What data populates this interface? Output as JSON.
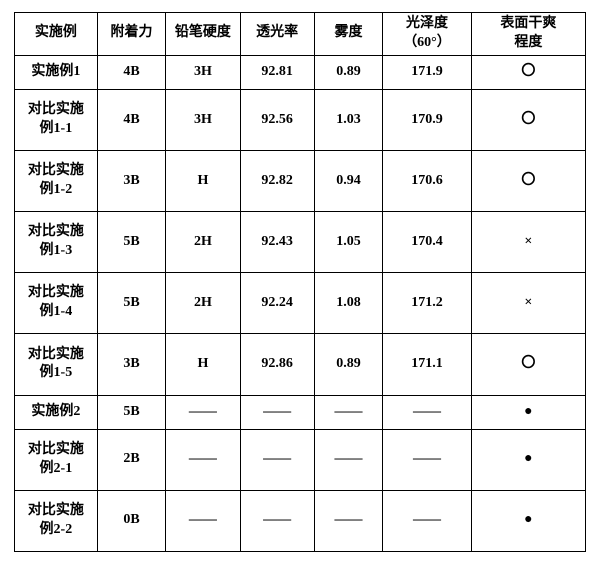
{
  "table": {
    "columns": [
      "实施例",
      "附着力",
      "铅笔硬度",
      "透光率",
      "雾度",
      "光泽度\n（60°）",
      "表面干爽\n程度"
    ],
    "col_widths_pct": [
      14.5,
      12,
      13,
      13,
      12,
      15.5,
      20
    ],
    "rows": [
      [
        "实施例1",
        "4B",
        "3H",
        "92.81",
        "0.89",
        "171.9",
        "〇"
      ],
      [
        "对比实施\n例1-1",
        "4B",
        "3H",
        "92.56",
        "1.03",
        "170.9",
        "〇"
      ],
      [
        "对比实施\n例1-2",
        "3B",
        "H",
        "92.82",
        "0.94",
        "170.6",
        "〇"
      ],
      [
        "对比实施\n例1-3",
        "5B",
        "2H",
        "92.43",
        "1.05",
        "170.4",
        "×"
      ],
      [
        "对比实施\n例1-4",
        "5B",
        "2H",
        "92.24",
        "1.08",
        "171.2",
        "×"
      ],
      [
        "对比实施\n例1-5",
        "3B",
        "H",
        "92.86",
        "0.89",
        "171.1",
        "〇"
      ],
      [
        "实施例2",
        "5B",
        "——",
        "——",
        "——",
        "——",
        "●"
      ],
      [
        "对比实施\n例2-1",
        "2B",
        "——",
        "——",
        "——",
        "——",
        "●"
      ],
      [
        "对比实施\n例2-2",
        "0B",
        "——",
        "——",
        "——",
        "——",
        "●"
      ]
    ],
    "border_color": "#000000",
    "background_color": "#ffffff",
    "font_family": "SimSun",
    "font_size_pt": 10.5,
    "font_weight": 700
  }
}
